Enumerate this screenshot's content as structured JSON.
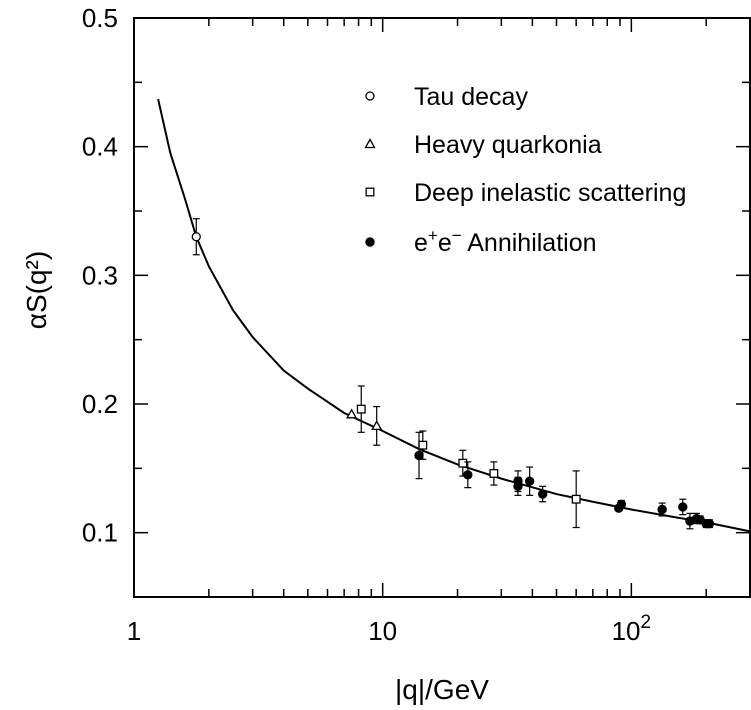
{
  "chart_data": {
    "type": "scatter",
    "title": "",
    "xlabel": "|q|/GeV",
    "ylabel": "αS(q²)",
    "xscale": "log",
    "xlim": [
      1,
      300
    ],
    "ylim": [
      0.05,
      0.5
    ],
    "grid": false,
    "legend_position": "top-right",
    "x_tick_labels": [
      "1",
      "10",
      "10²"
    ],
    "x_tick_values": [
      1,
      10,
      100
    ],
    "y_tick_labels": [
      "0.1",
      "0.2",
      "0.3",
      "0.4",
      "0.5"
    ],
    "y_tick_values": [
      0.1,
      0.2,
      0.3,
      0.4,
      0.5
    ],
    "series": [
      {
        "name": "Tau decay",
        "marker": "open-circle",
        "points": [
          {
            "x": 1.78,
            "y": 0.33,
            "yerr": 0.014
          }
        ]
      },
      {
        "name": "Heavy quarkonia",
        "marker": "open-triangle",
        "points": [
          {
            "x": 7.5,
            "y": 0.192,
            "yerr": 0.0
          },
          {
            "x": 9.46,
            "y": 0.183,
            "yerr": 0.015
          }
        ]
      },
      {
        "name": "Deep inelastic scattering",
        "marker": "open-square",
        "points": [
          {
            "x": 8.2,
            "y": 0.196,
            "yerr": 0.018
          },
          {
            "x": 14.5,
            "y": 0.168,
            "yerr": 0.011
          },
          {
            "x": 21.0,
            "y": 0.154,
            "yerr": 0.01
          },
          {
            "x": 28.0,
            "y": 0.146,
            "yerr": 0.009
          },
          {
            "x": 60.0,
            "y": 0.126,
            "yerr": 0.022
          }
        ]
      },
      {
        "name": "e+e− Annihilation",
        "marker": "filled-circle",
        "points": [
          {
            "x": 14.0,
            "y": 0.16,
            "yerr": 0.018
          },
          {
            "x": 22.0,
            "y": 0.145,
            "yerr": 0.01
          },
          {
            "x": 35.0,
            "y": 0.14,
            "yerr": 0.008
          },
          {
            "x": 35.0,
            "y": 0.136,
            "yerr": 0.007
          },
          {
            "x": 39.0,
            "y": 0.14,
            "yerr": 0.011
          },
          {
            "x": 44.0,
            "y": 0.13,
            "yerr": 0.006
          },
          {
            "x": 89.0,
            "y": 0.119,
            "yerr": 0.002
          },
          {
            "x": 91.2,
            "y": 0.122,
            "yerr": 0.003
          },
          {
            "x": 133.0,
            "y": 0.118,
            "yerr": 0.005
          },
          {
            "x": 161.0,
            "y": 0.12,
            "yerr": 0.006
          },
          {
            "x": 172.0,
            "y": 0.109,
            "yerr": 0.006
          },
          {
            "x": 183.0,
            "y": 0.111,
            "yerr": 0.004
          },
          {
            "x": 189.0,
            "y": 0.11,
            "yerr": 0.003
          },
          {
            "x": 200.0,
            "y": 0.107,
            "yerr": 0.003
          },
          {
            "x": 206.0,
            "y": 0.107,
            "yerr": 0.003
          }
        ]
      }
    ],
    "curve": {
      "x": [
        1.25,
        1.4,
        1.6,
        1.78,
        2,
        2.5,
        3,
        4,
        5,
        7,
        10,
        14,
        20,
        30,
        50,
        70,
        100,
        150,
        200,
        300
      ],
      "y": [
        0.437,
        0.395,
        0.36,
        0.33,
        0.307,
        0.273,
        0.252,
        0.226,
        0.212,
        0.193,
        0.179,
        0.165,
        0.153,
        0.142,
        0.13,
        0.124,
        0.118,
        0.112,
        0.108,
        0.101
      ]
    }
  }
}
